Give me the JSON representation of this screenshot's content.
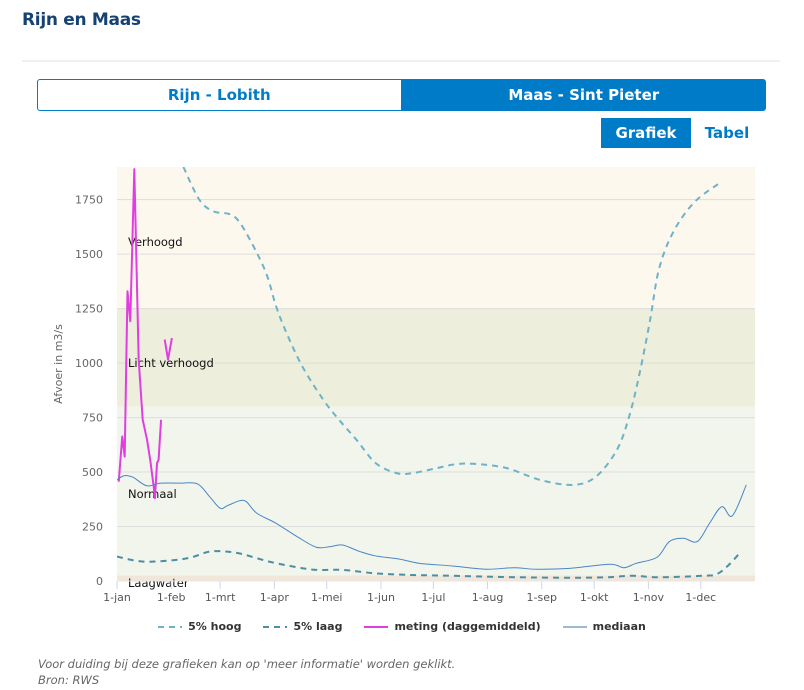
{
  "page": {
    "title": "Rijn en Maas"
  },
  "station_tabs": [
    {
      "label": "Rijn - Lobith",
      "active": false
    },
    {
      "label": "Maas - Sint Pieter",
      "active": true
    }
  ],
  "view_tabs": [
    {
      "label": "Grafiek",
      "active": true
    },
    {
      "label": "Tabel",
      "active": false
    }
  ],
  "footer": {
    "note": "Voor duiding bij deze grafieken kan op 'meer informatie' worden geklikt.",
    "source": "Bron: RWS"
  },
  "colors": {
    "brand": "#007bc7",
    "title": "#154273",
    "band_verhoogd": "#fcf8ee",
    "band_licht_verhoogd": "#edeedb",
    "band_normaal": "#f1f5ec",
    "band_laagwater": "#f2e6d9",
    "hoog5": "#6fb2c8",
    "laag5": "#4e8ea2",
    "meting": "#e03ee0",
    "mediaan": "#4a86c4",
    "mediaan_legend": "#9bbad6"
  },
  "chart_data": {
    "type": "line",
    "title": "",
    "xlabel": "",
    "ylabel": "Afvoer in m3/s",
    "xlim": [
      0,
      365
    ],
    "ylim": [
      0,
      1900
    ],
    "grid": true,
    "legend_position": "bottom",
    "x_ticks": [
      {
        "day": 0,
        "label": "1-jan"
      },
      {
        "day": 31,
        "label": "1-feb"
      },
      {
        "day": 59,
        "label": "1-mrt"
      },
      {
        "day": 90,
        "label": "1-apr"
      },
      {
        "day": 120,
        "label": "1-mei"
      },
      {
        "day": 151,
        "label": "1-jun"
      },
      {
        "day": 181,
        "label": "1-jul"
      },
      {
        "day": 212,
        "label": "1-aug"
      },
      {
        "day": 243,
        "label": "1-sep"
      },
      {
        "day": 273,
        "label": "1-okt"
      },
      {
        "day": 304,
        "label": "1-nov"
      },
      {
        "day": 334,
        "label": "1-dec"
      }
    ],
    "y_ticks": [
      0,
      250,
      500,
      750,
      1000,
      1250,
      1500,
      1750
    ],
    "bands": [
      {
        "label": "Verhoogd",
        "from": 1250,
        "to": 1900,
        "color": "#fcf8ee",
        "label_value": 1560
      },
      {
        "label": "Licht verhoogd",
        "from": 800,
        "to": 1250,
        "color": "#edeedb",
        "label_value": 1005
      },
      {
        "label": "Normaal",
        "from": 25,
        "to": 800,
        "color": "#f1f5ec",
        "label_value": 405
      },
      {
        "label": "Laagwater",
        "from": 0,
        "to": 25,
        "color": "#f2e6d9",
        "label_value": -5
      }
    ],
    "series": [
      {
        "name": "5% hoog",
        "style": "dashed",
        "color": "#6fb2c8",
        "points": [
          [
            38,
            1900
          ],
          [
            47,
            1751
          ],
          [
            55,
            1697
          ],
          [
            65,
            1682
          ],
          [
            71,
            1636
          ],
          [
            80,
            1506
          ],
          [
            86,
            1398
          ],
          [
            91,
            1261
          ],
          [
            97,
            1138
          ],
          [
            106,
            985
          ],
          [
            118,
            832
          ],
          [
            127,
            740
          ],
          [
            137,
            648
          ],
          [
            148,
            541
          ],
          [
            160,
            495
          ],
          [
            169,
            495
          ],
          [
            183,
            518
          ],
          [
            193,
            535
          ],
          [
            204,
            538
          ],
          [
            223,
            518
          ],
          [
            242,
            464
          ],
          [
            261,
            441
          ],
          [
            274,
            479
          ],
          [
            286,
            602
          ],
          [
            293,
            755
          ],
          [
            299,
            954
          ],
          [
            305,
            1199
          ],
          [
            310,
            1429
          ],
          [
            318,
            1598
          ],
          [
            330,
            1736
          ],
          [
            345,
            1828
          ]
        ]
      },
      {
        "name": "5% laag",
        "style": "dashed",
        "color": "#4e8ea2",
        "points": [
          [
            0,
            112
          ],
          [
            15,
            89
          ],
          [
            34,
            97
          ],
          [
            44,
            112
          ],
          [
            53,
            135
          ],
          [
            63,
            135
          ],
          [
            72,
            123
          ],
          [
            87,
            89
          ],
          [
            103,
            63
          ],
          [
            114,
            51
          ],
          [
            129,
            51
          ],
          [
            148,
            35
          ],
          [
            167,
            28
          ],
          [
            179,
            26
          ],
          [
            192,
            24
          ],
          [
            211,
            20
          ],
          [
            230,
            17
          ],
          [
            259,
            15
          ],
          [
            280,
            17
          ],
          [
            295,
            24
          ],
          [
            310,
            17
          ],
          [
            335,
            24
          ],
          [
            343,
            31
          ],
          [
            350,
            74
          ],
          [
            357,
            135
          ]
        ]
      },
      {
        "name": "meting (daggemiddeld)",
        "style": "solid",
        "color": "#e03ee0",
        "segments": [
          [
            [
              1,
              456
            ],
            [
              3,
              663
            ],
            [
              4.4,
              571
            ],
            [
              6,
              1330
            ],
            [
              7.6,
              1192
            ],
            [
              9.9,
              1890
            ],
            [
              12.4,
              1016
            ],
            [
              14.7,
              740
            ],
            [
              17.2,
              648
            ],
            [
              19,
              556
            ],
            [
              21,
              433
            ],
            [
              21.7,
              380
            ],
            [
              22.9,
              541
            ],
            [
              23.8,
              556
            ],
            [
              25.2,
              740
            ]
          ],
          [
            [
              27.3,
              1108
            ],
            [
              29.2,
              1016
            ],
            [
              31.4,
              1115
            ]
          ]
        ]
      },
      {
        "name": "mediaan",
        "style": "solid",
        "color": "#4a86c4",
        "points": [
          [
            0,
            464
          ],
          [
            4,
            483
          ],
          [
            9,
            477
          ],
          [
            17,
            437
          ],
          [
            25,
            449
          ],
          [
            36,
            449
          ],
          [
            46,
            446
          ],
          [
            53,
            387
          ],
          [
            59,
            334
          ],
          [
            63,
            345
          ],
          [
            70,
            368
          ],
          [
            74,
            364
          ],
          [
            80,
            311
          ],
          [
            91,
            265
          ],
          [
            103,
            204
          ],
          [
            114,
            155
          ],
          [
            122,
            158
          ],
          [
            129,
            165
          ],
          [
            139,
            135
          ],
          [
            148,
            115
          ],
          [
            162,
            100
          ],
          [
            173,
            81
          ],
          [
            192,
            69
          ],
          [
            211,
            54
          ],
          [
            227,
            61
          ],
          [
            240,
            54
          ],
          [
            259,
            58
          ],
          [
            282,
            77
          ],
          [
            290,
            61
          ],
          [
            297,
            81
          ],
          [
            309,
            109
          ],
          [
            316,
            181
          ],
          [
            324,
            196
          ],
          [
            332,
            181
          ],
          [
            339,
            265
          ],
          [
            346,
            341
          ],
          [
            352,
            299
          ],
          [
            360,
            441
          ]
        ]
      }
    ]
  }
}
